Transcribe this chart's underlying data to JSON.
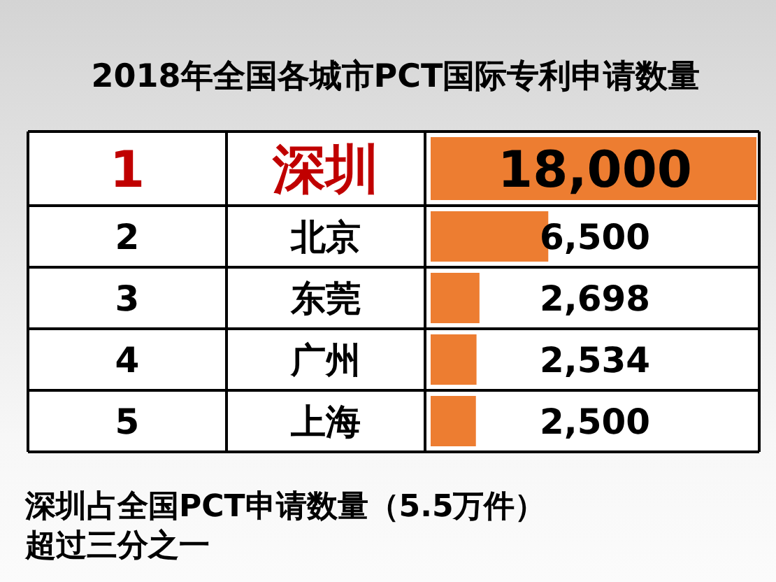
{
  "chart_data": {
    "type": "bar",
    "orientation": "horizontal",
    "title": "2018年全国各城市PCT国际专利申请数量",
    "categories": [
      "深圳",
      "北京",
      "东莞",
      "广州",
      "上海"
    ],
    "values": [
      18000,
      6500,
      2698,
      2534,
      2500
    ],
    "value_labels": [
      "18,000",
      "6,500",
      "2,698",
      "2,534",
      "2,500"
    ],
    "color": "#ed7d31",
    "tick_labels": "y",
    "annotations": [
      "1",
      "2",
      "3",
      "4",
      "5",
      "深圳占全国PCT申请数量（5.5万件）超过三分之一"
    ]
  }
}
